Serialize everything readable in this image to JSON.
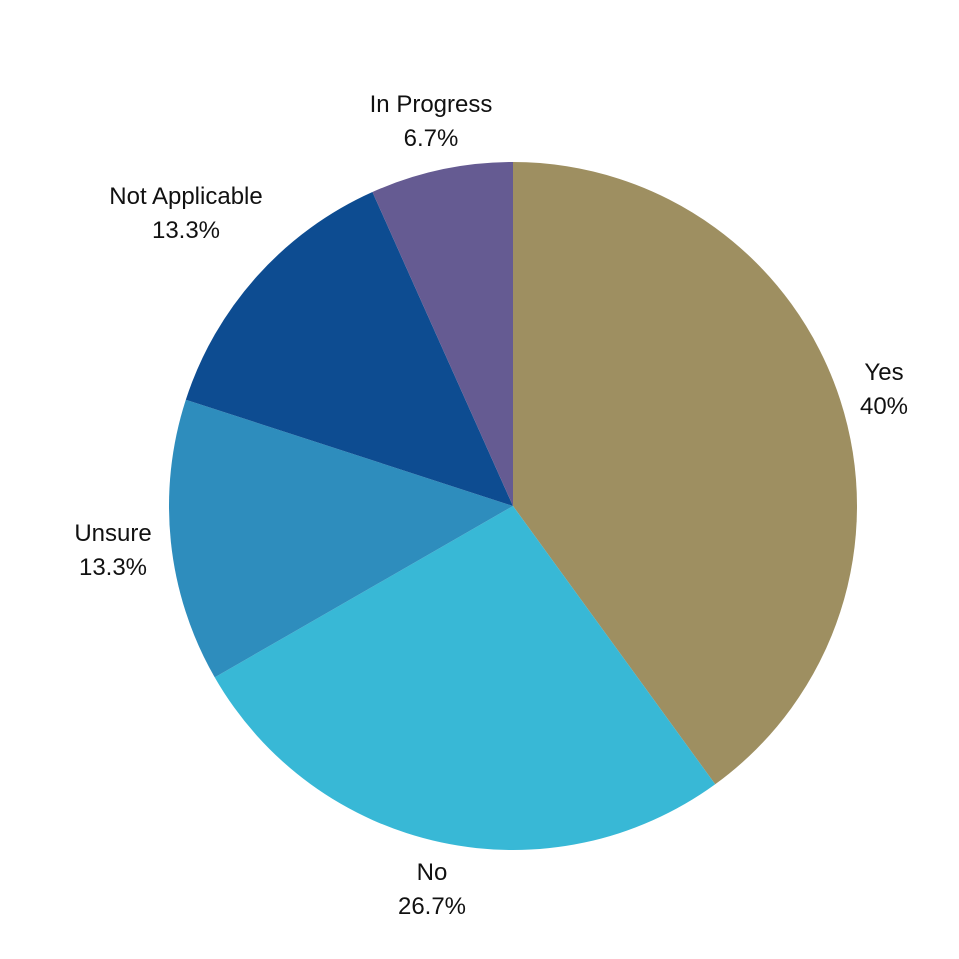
{
  "chart_data": {
    "type": "pie",
    "slices": [
      {
        "label": "Yes",
        "value": 40,
        "value_label": "40%",
        "color": "#9E8F61"
      },
      {
        "label": "No",
        "value": 26.7,
        "value_label": "26.7%",
        "color": "#38B8D6"
      },
      {
        "label": "Unsure",
        "value": 13.3,
        "value_label": "13.3%",
        "color": "#2E8DBD"
      },
      {
        "label": "Not Applicable",
        "value": 13.3,
        "value_label": "13.3%",
        "color": "#0D4C91"
      },
      {
        "label": "In Progress",
        "value": 6.7,
        "value_label": "6.7%",
        "color": "#655B92"
      }
    ],
    "direction": "clockwise",
    "start": "12 o'clock",
    "legend": "none"
  }
}
